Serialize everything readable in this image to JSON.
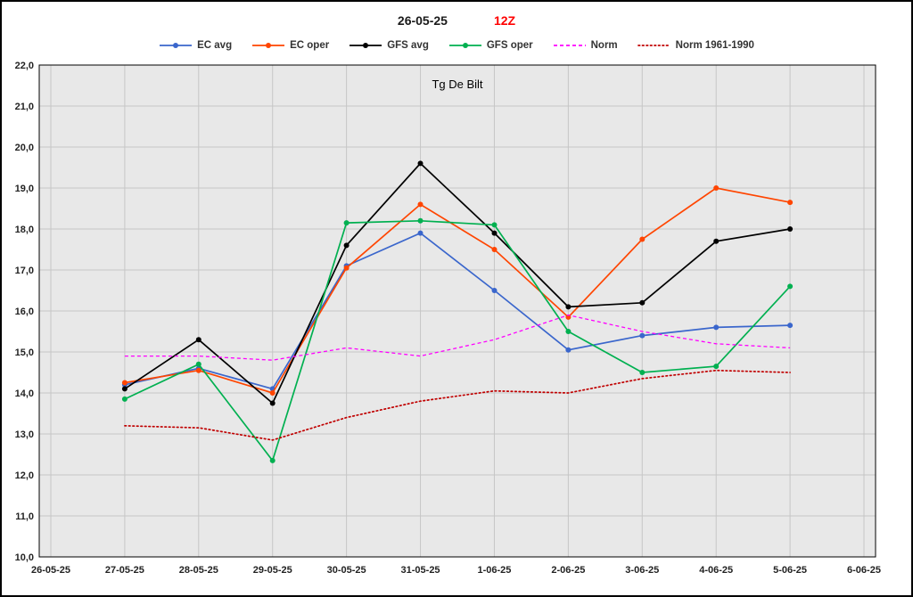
{
  "header": {
    "date_title": "26-05-25",
    "run_label": "12Z"
  },
  "chart_data": {
    "type": "line",
    "title": "Tg De Bilt",
    "plot_bg": "#e8e8e8",
    "grid_color": "#c6c6c6",
    "border_color": "#000000",
    "decimal_separator": ",",
    "x_labels": [
      "26-05-25",
      "27-05-25",
      "28-05-25",
      "29-05-25",
      "30-05-25",
      "31-05-25",
      "1-06-25",
      "2-06-25",
      "3-06-25",
      "4-06-25",
      "5-06-25",
      "6-06-25"
    ],
    "ylim": [
      10,
      22
    ],
    "ytick_step": 1,
    "legend_position": "top",
    "grid": true,
    "series": [
      {
        "name": "EC avg",
        "color": "#3a66cc",
        "style": "solid",
        "marker": true,
        "width": 1.7,
        "start_index": 1,
        "values": [
          14.2,
          14.6,
          14.1,
          17.1,
          17.9,
          16.5,
          15.05,
          15.4,
          15.6,
          15.65
        ]
      },
      {
        "name": "EC oper",
        "color": "#ff4500",
        "style": "solid",
        "marker": true,
        "width": 1.7,
        "start_index": 1,
        "values": [
          14.25,
          14.55,
          14.0,
          17.05,
          18.6,
          17.5,
          15.85,
          17.75,
          19.0,
          18.65
        ]
      },
      {
        "name": "GFS avg",
        "color": "#000000",
        "style": "solid",
        "marker": true,
        "width": 1.7,
        "start_index": 1,
        "values": [
          14.1,
          15.3,
          13.75,
          17.6,
          19.6,
          17.9,
          16.1,
          16.2,
          17.7,
          18.0
        ]
      },
      {
        "name": "GFS oper",
        "color": "#00b050",
        "style": "solid",
        "marker": true,
        "width": 1.7,
        "start_index": 1,
        "values": [
          13.85,
          14.7,
          12.35,
          18.15,
          18.2,
          18.1,
          15.5,
          14.5,
          14.65,
          16.6
        ]
      },
      {
        "name": "Norm",
        "color": "#ff00ff",
        "style": "dashed",
        "marker": false,
        "width": 1.3,
        "start_index": 1,
        "values": [
          14.9,
          14.9,
          14.8,
          15.1,
          14.9,
          15.3,
          15.9,
          15.5,
          15.2,
          15.1
        ]
      },
      {
        "name": "Norm 1961-1990",
        "color": "#c00000",
        "style": "dotted",
        "marker": false,
        "width": 1.7,
        "start_index": 1,
        "values": [
          13.2,
          13.15,
          12.85,
          13.4,
          13.8,
          14.05,
          14.0,
          14.35,
          14.55,
          14.5
        ]
      }
    ]
  }
}
